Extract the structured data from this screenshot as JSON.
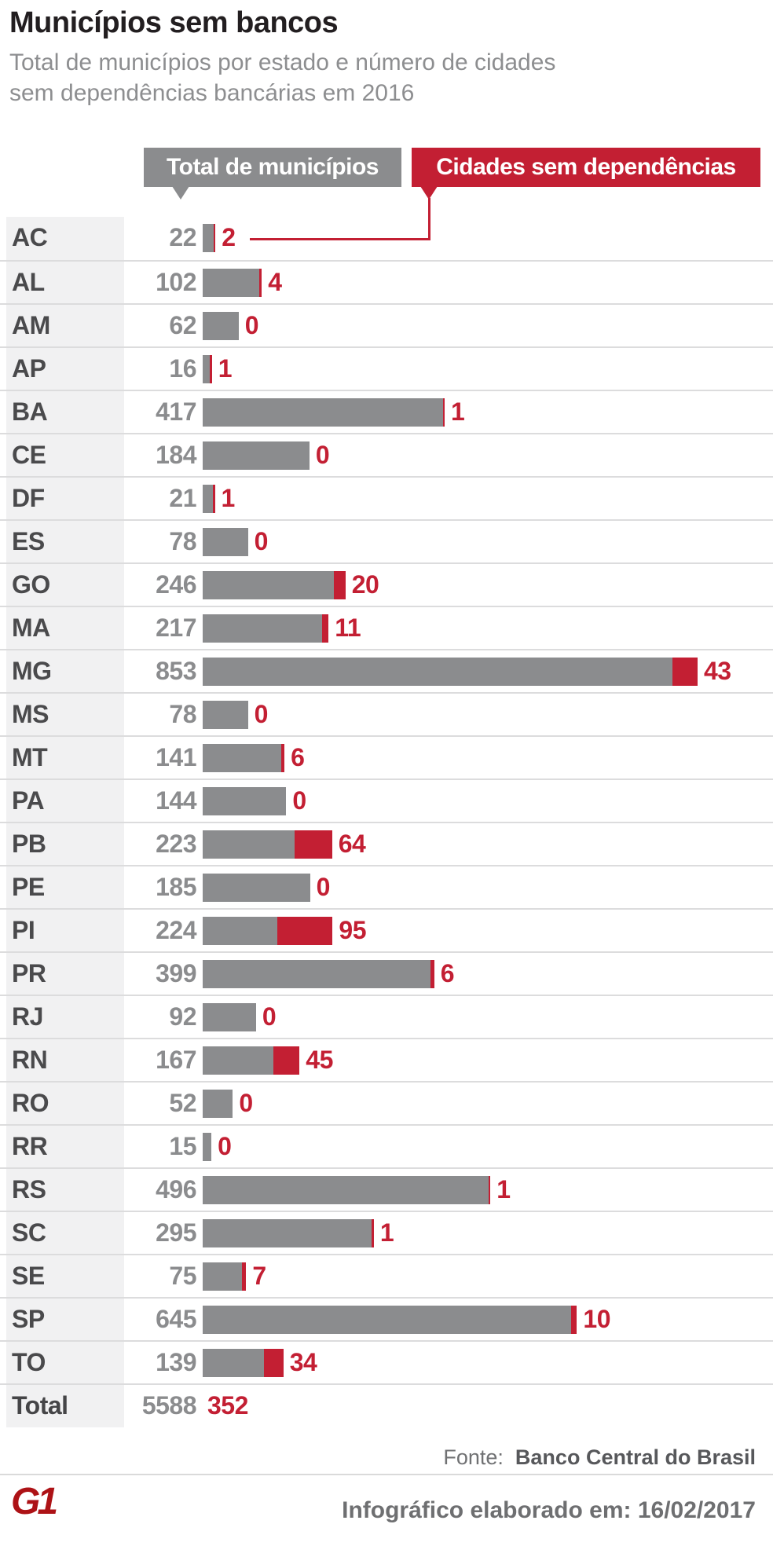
{
  "header": {
    "title": "Municípios sem bancos",
    "subtitle_line1": "Total de municípios por estado e número de cidades",
    "subtitle_line2": "sem dependências bancárias em 2016"
  },
  "legend": {
    "total_label": "Total de municípios",
    "no_bank_label": "Cidades sem dependências"
  },
  "chart_data": {
    "type": "bar",
    "orientation": "horizontal",
    "title": "Municípios sem bancos",
    "subtitle": "Total de municípios por estado e número de cidades sem dependências bancárias em 2016",
    "categories": [
      "AC",
      "AL",
      "AM",
      "AP",
      "BA",
      "CE",
      "DF",
      "ES",
      "GO",
      "MA",
      "MG",
      "MS",
      "MT",
      "PA",
      "PB",
      "PE",
      "PI",
      "PR",
      "RJ",
      "RN",
      "RO",
      "RR",
      "RS",
      "SC",
      "SE",
      "SP",
      "TO"
    ],
    "series": [
      {
        "name": "Total de municípios",
        "values": [
          22,
          102,
          62,
          16,
          417,
          184,
          21,
          78,
          246,
          217,
          853,
          78,
          141,
          144,
          223,
          185,
          224,
          399,
          92,
          167,
          52,
          15,
          496,
          295,
          75,
          645,
          139
        ]
      },
      {
        "name": "Cidades sem dependências",
        "values": [
          2,
          4,
          0,
          1,
          1,
          0,
          1,
          0,
          20,
          11,
          43,
          0,
          6,
          0,
          64,
          0,
          95,
          6,
          0,
          45,
          0,
          0,
          1,
          1,
          7,
          10,
          34
        ]
      }
    ],
    "total_row": {
      "label": "Total",
      "total": "5588",
      "no_bank": "352"
    },
    "xmax": 853,
    "legend_position": "top",
    "grid": false
  },
  "footer": {
    "source_prefix": "Fonte:",
    "source_name": "Banco Central do Brasil",
    "credit": "Infográfico elaborado em: 16/02/2017",
    "logo_text": "G1"
  },
  "colors": {
    "bar_gray": "#8b8c8e",
    "bar_red": "#c31f33",
    "panel_bg": "#f1f1f2",
    "logo_red": "#ad1216"
  }
}
